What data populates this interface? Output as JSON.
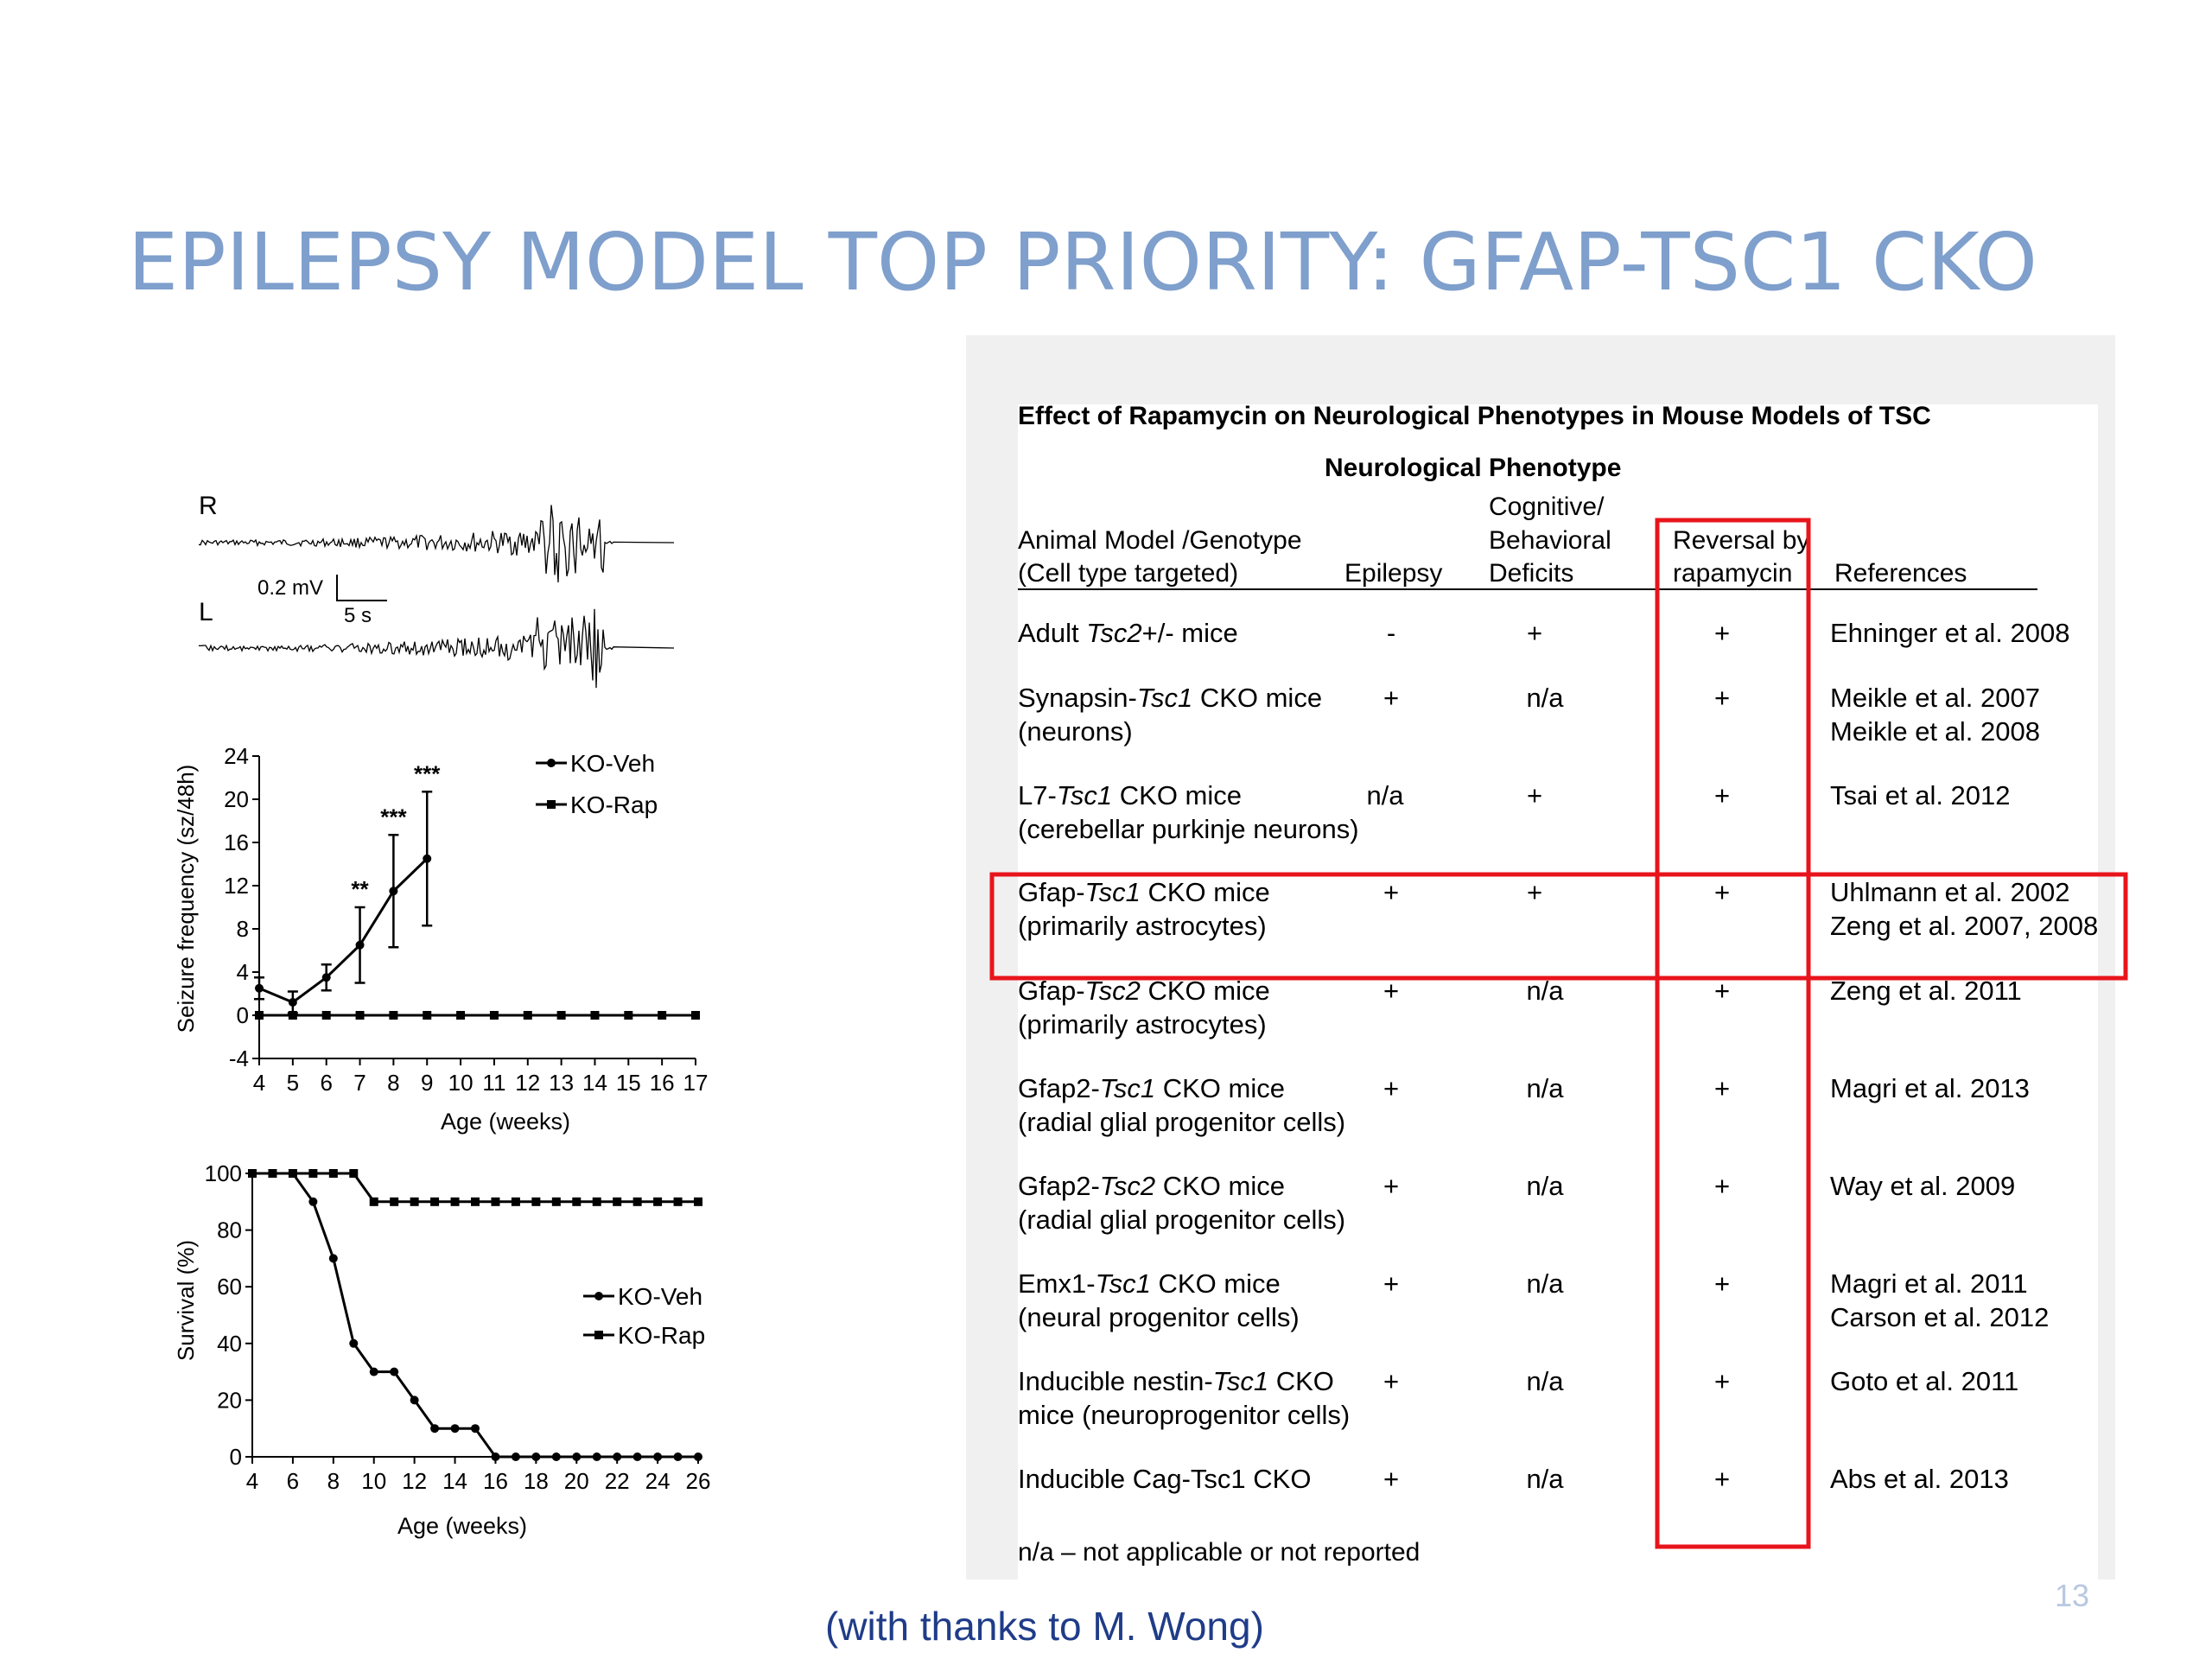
{
  "slide": {
    "title": "EPILEPSY MODEL TOP PRIORITY: GFAP-TSC1 CKO",
    "credit": "(with thanks to M. Wong)",
    "page_number": "13"
  },
  "eeg": {
    "channel_top": "R",
    "channel_bottom": "L",
    "scale_voltage": "0.2 mV",
    "scale_time": "5 s"
  },
  "chart_data": [
    {
      "type": "line",
      "xlabel": "Age (weeks)",
      "ylabel": "Seizure frequency (sz/48h)",
      "x_ticks": [
        4,
        5,
        6,
        7,
        8,
        9,
        10,
        11,
        12,
        13,
        14,
        15,
        16,
        17
      ],
      "y_ticks": [
        -4,
        0,
        4,
        8,
        12,
        16,
        20,
        24
      ],
      "xlim": [
        4,
        17
      ],
      "ylim": [
        -4,
        24
      ],
      "legend_position": "top-right",
      "series": [
        {
          "name": "KO-Veh",
          "x": [
            4,
            5,
            6,
            7,
            8,
            9
          ],
          "y": [
            2.5,
            1.2,
            3.5,
            6.5,
            11.5,
            14.5
          ],
          "err": [
            1,
            1,
            1.2,
            3.5,
            5.2,
            6.2
          ]
        },
        {
          "name": "KO-Rap",
          "x": [
            4,
            5,
            6,
            7,
            8,
            9,
            10,
            11,
            12,
            13,
            14,
            15,
            16,
            17
          ],
          "y": [
            0,
            0,
            0,
            0,
            0,
            0,
            0,
            0,
            0,
            0,
            0,
            0,
            0,
            0
          ]
        }
      ],
      "annotations": [
        {
          "x": 7,
          "label": "**"
        },
        {
          "x": 8,
          "label": "***"
        },
        {
          "x": 9,
          "label": "***"
        }
      ]
    },
    {
      "type": "line",
      "xlabel": "Age (weeks)",
      "ylabel": "Survival (%)",
      "x_ticks": [
        4,
        6,
        8,
        10,
        12,
        14,
        16,
        18,
        20,
        22,
        24,
        26
      ],
      "y_ticks": [
        0,
        20,
        40,
        60,
        80,
        100
      ],
      "xlim": [
        4,
        26
      ],
      "ylim": [
        0,
        100
      ],
      "legend_position": "right",
      "series": [
        {
          "name": "KO-Veh",
          "x": [
            4,
            5,
            6,
            7,
            8,
            9,
            10,
            11,
            12,
            13,
            14,
            15,
            16,
            17,
            18,
            19,
            20,
            21,
            22,
            23,
            24,
            25,
            26
          ],
          "y": [
            100,
            100,
            100,
            90,
            70,
            40,
            30,
            30,
            20,
            10,
            10,
            10,
            0,
            0,
            0,
            0,
            0,
            0,
            0,
            0,
            0,
            0,
            0
          ]
        },
        {
          "name": "KO-Rap",
          "x": [
            4,
            5,
            6,
            7,
            8,
            9,
            10,
            11,
            12,
            13,
            14,
            15,
            16,
            17,
            18,
            19,
            20,
            21,
            22,
            23,
            24,
            25,
            26
          ],
          "y": [
            100,
            100,
            100,
            100,
            100,
            100,
            90,
            90,
            90,
            90,
            90,
            90,
            90,
            90,
            90,
            90,
            90,
            90,
            90,
            90,
            90,
            90,
            90
          ]
        }
      ]
    }
  ],
  "table": {
    "title": "Effect of Rapamycin on Neurological Phenotypes in Mouse Models of TSC",
    "group_header": "Neurological Phenotype",
    "columns": {
      "model_line1": "Animal Model /Genotype",
      "model_line2": "(Cell type targeted)",
      "epilepsy": "Epilepsy",
      "cog_line1": "Cognitive/",
      "cog_line2": "Behavioral",
      "cog_line3": "Deficits",
      "rev_line1": "Reversal by",
      "rev_line2": "rapamycin",
      "refs": "References"
    },
    "rows": [
      {
        "pre": "Adult ",
        "gene": "Tsc2",
        "post": "+/- mice",
        "line2": "",
        "epilepsy": "-",
        "cognitive": "+",
        "reversal": "+",
        "ref1": "Ehninger et al. 2008",
        "ref2": ""
      },
      {
        "pre": "Synapsin-",
        "gene": "Tsc1",
        "post": " CKO mice",
        "line2": "(neurons)",
        "epilepsy": "+",
        "cognitive": "n/a",
        "reversal": "+",
        "ref1": "Meikle et al. 2007",
        "ref2": "Meikle et al. 2008"
      },
      {
        "pre": "L7-",
        "gene": "Tsc1",
        "post": " CKO mice",
        "line2": "(cerebellar purkinje neurons)",
        "epilepsy": "n/a",
        "cognitive": "+",
        "reversal": "+",
        "ref1": "Tsai et al. 2012",
        "ref2": ""
      },
      {
        "pre": "Gfap-",
        "gene": "Tsc1",
        "post": " CKO mice",
        "line2": "(primarily astrocytes)",
        "epilepsy": "+",
        "cognitive": "+",
        "reversal": "+",
        "ref1": "Uhlmann et al. 2002",
        "ref2": "Zeng et al. 2007, 2008"
      },
      {
        "pre": "Gfap-",
        "gene": "Tsc2",
        "post": " CKO mice",
        "line2": "(primarily astrocytes)",
        "epilepsy": "+",
        "cognitive": "n/a",
        "reversal": "+",
        "ref1": "Zeng et al. 2011",
        "ref2": ""
      },
      {
        "pre": "Gfap2-",
        "gene": "Tsc1",
        "post": " CKO mice",
        "line2": "(radial glial progenitor cells)",
        "epilepsy": "+",
        "cognitive": "n/a",
        "reversal": "+",
        "ref1": "Magri et al. 2013",
        "ref2": ""
      },
      {
        "pre": "Gfap2-",
        "gene": "Tsc2",
        "post": " CKO mice",
        "line2": "(radial glial progenitor cells)",
        "epilepsy": "+",
        "cognitive": "n/a",
        "reversal": "+",
        "ref1": "Way et al. 2009",
        "ref2": ""
      },
      {
        "pre": "Emx1-",
        "gene": "Tsc1",
        "post": " CKO mice",
        "line2": "(neural progenitor cells)",
        "epilepsy": "+",
        "cognitive": "n/a",
        "reversal": "+",
        "ref1": "Magri et al. 2011",
        "ref2": "Carson et al. 2012"
      },
      {
        "pre": "Inducible nestin-",
        "gene": "Tsc1",
        "post": " CKO",
        "line2": "mice (neuroprogenitor cells)",
        "epilepsy": "+",
        "cognitive": "n/a",
        "reversal": "+",
        "ref1": "Goto et al. 2011",
        "ref2": ""
      },
      {
        "pre": "Inducible Cag-Tsc1 CKO",
        "gene": "",
        "post": "",
        "line2": "",
        "epilepsy": "+",
        "cognitive": "n/a",
        "reversal": "+",
        "ref1": "Abs et al. 2013",
        "ref2": ""
      }
    ],
    "footnote": "n/a – not applicable or not reported",
    "highlight_color": "#e8141c"
  }
}
